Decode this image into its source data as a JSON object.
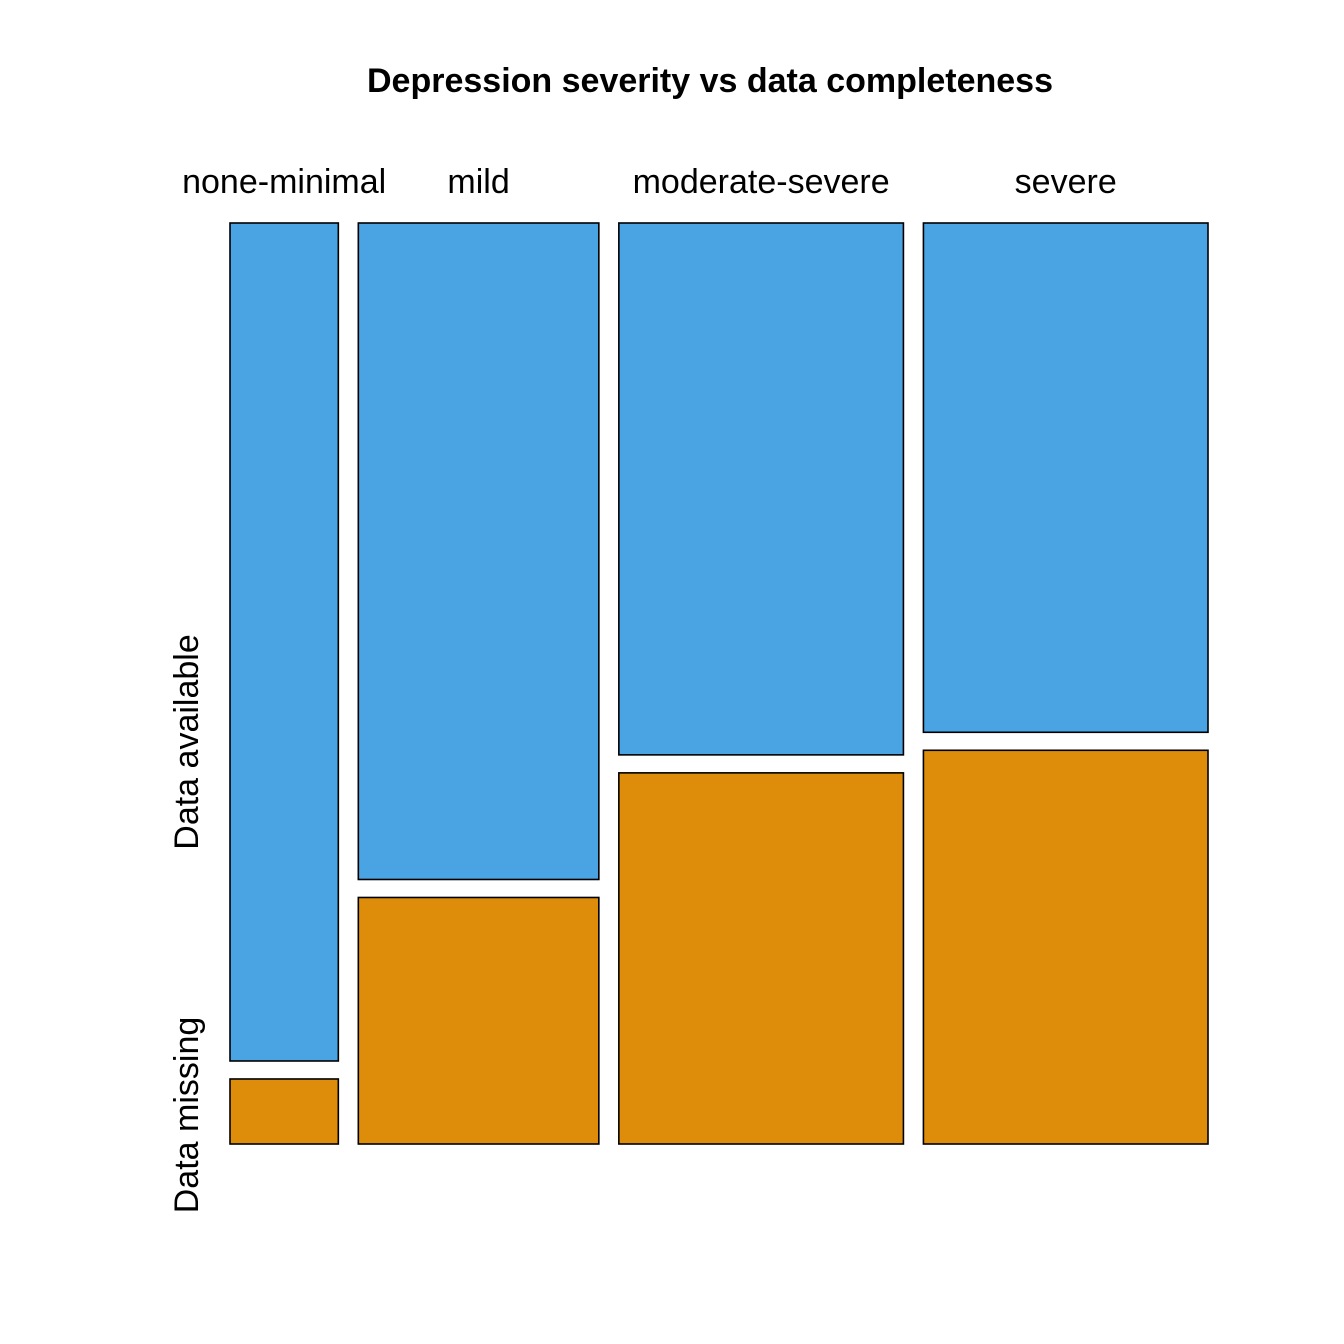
{
  "chart_data": {
    "type": "mosaic",
    "title": "Depression severity vs data completeness",
    "categories": [
      "none-minimal",
      "mild",
      "moderate-severe",
      "severe"
    ],
    "column_widths": [
      0.118,
      0.262,
      0.31,
      0.31
    ],
    "series": [
      {
        "name": "Data available",
        "values": [
          0.928,
          0.727,
          0.589,
          0.564
        ]
      },
      {
        "name": "Data missing",
        "values": [
          0.072,
          0.273,
          0.411,
          0.436
        ]
      }
    ],
    "colors": {
      "Data available": "#4aa3e2",
      "Data missing": "#de8d0a"
    },
    "grid": false,
    "legend": "none"
  }
}
